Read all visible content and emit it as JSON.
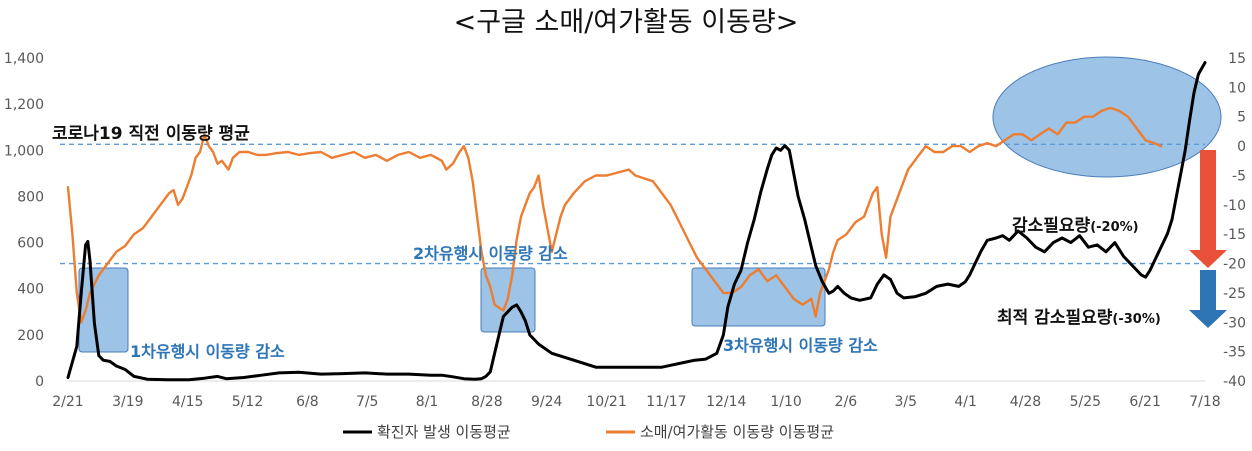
{
  "chart_data": {
    "type": "line",
    "title": "<구글 소매/여가활동 이동량>",
    "x_ticks": [
      "2/21",
      "3/19",
      "4/15",
      "5/12",
      "6/8",
      "7/5",
      "8/1",
      "8/28",
      "9/24",
      "10/21",
      "11/17",
      "12/14",
      "1/10",
      "2/6",
      "3/5",
      "4/1",
      "4/28",
      "5/25",
      "6/21",
      "7/18"
    ],
    "y_left": {
      "min": 0,
      "max": 1400,
      "ticks": [
        "0",
        "200",
        "400",
        "600",
        "800",
        "1,000",
        "1,200",
        "1,400"
      ]
    },
    "y_right": {
      "min": -40,
      "max": 15,
      "ticks": [
        "15",
        "10",
        "5",
        "0",
        "-5",
        "-10",
        "-15",
        "-20",
        "-25",
        "-30",
        "-35",
        "-40"
      ]
    },
    "legend": [
      "확진자 발생 이동평균",
      "소매/여가활동 이동량 이동평균"
    ],
    "colors": {
      "cases": "#000000",
      "mobility": "#ed7d31",
      "ref_line": "#5b9bd5",
      "box": "#9dc3e6",
      "box_stroke": "#4a7ebb",
      "arrow_red": "#e8503a",
      "arrow_blue": "#2e75b6"
    },
    "series": [
      {
        "name": "확진자 발생 이동평균",
        "axis": "left",
        "color": "#000000",
        "points": [
          [
            0,
            15
          ],
          [
            4,
            150
          ],
          [
            6,
            380
          ],
          [
            8,
            590
          ],
          [
            9,
            605
          ],
          [
            10,
            520
          ],
          [
            12,
            250
          ],
          [
            14,
            110
          ],
          [
            16,
            90
          ],
          [
            19,
            85
          ],
          [
            22,
            65
          ],
          [
            26,
            50
          ],
          [
            30,
            20
          ],
          [
            36,
            8
          ],
          [
            45,
            5
          ],
          [
            55,
            5
          ],
          [
            62,
            12
          ],
          [
            68,
            20
          ],
          [
            72,
            10
          ],
          [
            80,
            15
          ],
          [
            88,
            25
          ],
          [
            96,
            35
          ],
          [
            105,
            38
          ],
          [
            115,
            30
          ],
          [
            125,
            32
          ],
          [
            135,
            35
          ],
          [
            145,
            30
          ],
          [
            155,
            30
          ],
          [
            165,
            25
          ],
          [
            170,
            25
          ],
          [
            175,
            18
          ],
          [
            180,
            10
          ],
          [
            185,
            8
          ],
          [
            188,
            10
          ],
          [
            190,
            20
          ],
          [
            192,
            40
          ],
          [
            194,
            120
          ],
          [
            196,
            200
          ],
          [
            198,
            280
          ],
          [
            200,
            300
          ],
          [
            202,
            320
          ],
          [
            204,
            330
          ],
          [
            206,
            300
          ],
          [
            208,
            260
          ],
          [
            210,
            200
          ],
          [
            214,
            160
          ],
          [
            220,
            120
          ],
          [
            230,
            90
          ],
          [
            240,
            60
          ],
          [
            250,
            60
          ],
          [
            260,
            60
          ],
          [
            270,
            60
          ],
          [
            280,
            80
          ],
          [
            285,
            90
          ],
          [
            290,
            95
          ],
          [
            295,
            120
          ],
          [
            298,
            200
          ],
          [
            300,
            320
          ],
          [
            303,
            420
          ],
          [
            306,
            480
          ],
          [
            309,
            600
          ],
          [
            312,
            700
          ],
          [
            315,
            820
          ],
          [
            318,
            920
          ],
          [
            320,
            980
          ],
          [
            322,
            1010
          ],
          [
            324,
            1000
          ],
          [
            326,
            1020
          ],
          [
            328,
            1000
          ],
          [
            330,
            900
          ],
          [
            332,
            800
          ],
          [
            335,
            700
          ],
          [
            338,
            580
          ],
          [
            340,
            500
          ],
          [
            343,
            430
          ],
          [
            346,
            380
          ],
          [
            348,
            390
          ],
          [
            350,
            410
          ],
          [
            353,
            380
          ],
          [
            356,
            360
          ],
          [
            360,
            350
          ],
          [
            365,
            360
          ],
          [
            368,
            420
          ],
          [
            371,
            460
          ],
          [
            374,
            440
          ],
          [
            377,
            380
          ],
          [
            380,
            360
          ],
          [
            385,
            365
          ],
          [
            390,
            380
          ],
          [
            395,
            410
          ],
          [
            400,
            420
          ],
          [
            405,
            410
          ],
          [
            408,
            430
          ],
          [
            410,
            460
          ],
          [
            412,
            500
          ],
          [
            415,
            560
          ],
          [
            418,
            610
          ],
          [
            422,
            620
          ],
          [
            425,
            630
          ],
          [
            428,
            610
          ],
          [
            432,
            650
          ],
          [
            436,
            620
          ],
          [
            440,
            580
          ],
          [
            444,
            560
          ],
          [
            448,
            600
          ],
          [
            452,
            620
          ],
          [
            456,
            600
          ],
          [
            460,
            630
          ],
          [
            464,
            580
          ],
          [
            468,
            590
          ],
          [
            472,
            560
          ],
          [
            476,
            600
          ],
          [
            480,
            540
          ],
          [
            484,
            500
          ],
          [
            488,
            460
          ],
          [
            490,
            450
          ],
          [
            492,
            480
          ],
          [
            494,
            520
          ],
          [
            496,
            560
          ],
          [
            498,
            600
          ],
          [
            500,
            640
          ],
          [
            502,
            700
          ],
          [
            504,
            800
          ],
          [
            506,
            900
          ],
          [
            508,
            1000
          ],
          [
            510,
            1130
          ],
          [
            512,
            1250
          ],
          [
            514,
            1330
          ],
          [
            517,
            1380
          ]
        ]
      },
      {
        "name": "소매/여가활동 이동량 이동평균",
        "axis": "right",
        "color": "#ed7d31",
        "points": [
          [
            0,
            -7
          ],
          [
            2,
            -15
          ],
          [
            4,
            -25
          ],
          [
            6,
            -30
          ],
          [
            8,
            -28
          ],
          [
            10,
            -25
          ],
          [
            14,
            -22
          ],
          [
            18,
            -20
          ],
          [
            22,
            -18
          ],
          [
            26,
            -17
          ],
          [
            30,
            -15
          ],
          [
            34,
            -14
          ],
          [
            38,
            -12
          ],
          [
            42,
            -10
          ],
          [
            46,
            -8
          ],
          [
            48,
            -7.5
          ],
          [
            50,
            -10
          ],
          [
            52,
            -9
          ],
          [
            54,
            -7
          ],
          [
            56,
            -5
          ],
          [
            58,
            -2
          ],
          [
            60,
            -1
          ],
          [
            62,
            2
          ],
          [
            64,
            0
          ],
          [
            66,
            -1
          ],
          [
            68,
            -3
          ],
          [
            70,
            -2.5
          ],
          [
            73,
            -4
          ],
          [
            75,
            -2
          ],
          [
            78,
            -1
          ],
          [
            82,
            -1
          ],
          [
            86,
            -1.5
          ],
          [
            90,
            -1.5
          ],
          [
            95,
            -1.2
          ],
          [
            100,
            -1
          ],
          [
            105,
            -1.5
          ],
          [
            110,
            -1.2
          ],
          [
            115,
            -1
          ],
          [
            120,
            -2
          ],
          [
            125,
            -1.5
          ],
          [
            130,
            -1
          ],
          [
            135,
            -2
          ],
          [
            140,
            -1.5
          ],
          [
            145,
            -2.5
          ],
          [
            150,
            -1.5
          ],
          [
            155,
            -1
          ],
          [
            160,
            -2
          ],
          [
            165,
            -1.5
          ],
          [
            170,
            -2.5
          ],
          [
            172,
            -4
          ],
          [
            175,
            -3
          ],
          [
            178,
            -1
          ],
          [
            180,
            0
          ],
          [
            182,
            -2
          ],
          [
            184,
            -6
          ],
          [
            186,
            -12
          ],
          [
            188,
            -18
          ],
          [
            190,
            -22
          ],
          [
            192,
            -24
          ],
          [
            194,
            -27
          ],
          [
            196,
            -27.5
          ],
          [
            198,
            -28
          ],
          [
            200,
            -26
          ],
          [
            202,
            -22
          ],
          [
            204,
            -16
          ],
          [
            206,
            -12
          ],
          [
            208,
            -10
          ],
          [
            210,
            -8
          ],
          [
            212,
            -7
          ],
          [
            214,
            -5
          ],
          [
            216,
            -10
          ],
          [
            218,
            -14
          ],
          [
            220,
            -18
          ],
          [
            222,
            -15
          ],
          [
            224,
            -12
          ],
          [
            226,
            -10
          ],
          [
            230,
            -8
          ],
          [
            235,
            -6
          ],
          [
            240,
            -5
          ],
          [
            245,
            -5
          ],
          [
            250,
            -4.5
          ],
          [
            255,
            -4
          ],
          [
            258,
            -5
          ],
          [
            262,
            -5.5
          ],
          [
            266,
            -6
          ],
          [
            270,
            -8
          ],
          [
            274,
            -10
          ],
          [
            278,
            -13
          ],
          [
            282,
            -16
          ],
          [
            286,
            -19
          ],
          [
            290,
            -21
          ],
          [
            294,
            -23
          ],
          [
            298,
            -25
          ],
          [
            302,
            -25
          ],
          [
            306,
            -24
          ],
          [
            310,
            -22
          ],
          [
            314,
            -21
          ],
          [
            318,
            -23
          ],
          [
            322,
            -22
          ],
          [
            326,
            -24
          ],
          [
            330,
            -26
          ],
          [
            334,
            -27
          ],
          [
            338,
            -26
          ],
          [
            340,
            -29
          ],
          [
            342,
            -25
          ],
          [
            344,
            -23
          ],
          [
            346,
            -21
          ],
          [
            348,
            -18
          ],
          [
            350,
            -16
          ],
          [
            354,
            -15
          ],
          [
            358,
            -13
          ],
          [
            362,
            -12
          ],
          [
            366,
            -8
          ],
          [
            368,
            -7
          ],
          [
            370,
            -15
          ],
          [
            372,
            -19
          ],
          [
            374,
            -12
          ],
          [
            378,
            -8
          ],
          [
            382,
            -4
          ],
          [
            386,
            -2
          ],
          [
            390,
            0
          ],
          [
            394,
            -1
          ],
          [
            398,
            -1
          ],
          [
            402,
            0
          ],
          [
            406,
            0
          ],
          [
            410,
            -1
          ],
          [
            414,
            0
          ],
          [
            418,
            0.5
          ],
          [
            422,
            0
          ],
          [
            426,
            1
          ],
          [
            430,
            2
          ],
          [
            434,
            2
          ],
          [
            438,
            1
          ],
          [
            442,
            2
          ],
          [
            446,
            3
          ],
          [
            450,
            2
          ],
          [
            454,
            4
          ],
          [
            458,
            4
          ],
          [
            462,
            5
          ],
          [
            466,
            5
          ],
          [
            470,
            6
          ],
          [
            474,
            6.5
          ],
          [
            478,
            6
          ],
          [
            482,
            5
          ],
          [
            486,
            3
          ],
          [
            490,
            1
          ],
          [
            494,
            0.5
          ],
          [
            497,
            0
          ]
        ]
      }
    ],
    "ref_lines": [
      {
        "axis": "right",
        "value": 0.3
      },
      {
        "axis": "right",
        "value": -20
      }
    ],
    "annotations": {
      "pre_covid": "코로나19 직전 이동량 평균",
      "wave1": "1차유행시 이동량 감소",
      "wave2": "2차유행시 이동량 감소",
      "wave3": "3차유행시 이동량 감소",
      "need_label": "감소필요량",
      "need_pct": "(-20%)",
      "opt_label": "최적 감소필요량",
      "opt_pct": "(-30%)"
    }
  }
}
